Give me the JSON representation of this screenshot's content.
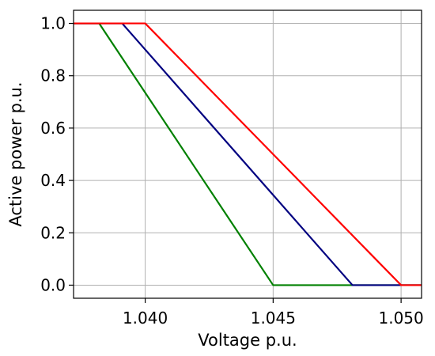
{
  "chart_data": {
    "type": "line",
    "title": "",
    "xlabel": "Voltage p.u.",
    "ylabel": "Active power p.u.",
    "xlim": [
      1.0372,
      1.0508
    ],
    "ylim": [
      -0.05,
      1.05
    ],
    "grid": true,
    "x_ticks": [
      1.04,
      1.045,
      1.05
    ],
    "x_tick_labels": [
      "1.040",
      "1.045",
      "1.050"
    ],
    "y_ticks": [
      0.0,
      0.2,
      0.4,
      0.6,
      0.8,
      1.0
    ],
    "y_tick_labels": [
      "0.0",
      "0.2",
      "0.4",
      "0.6",
      "0.8",
      "1.0"
    ],
    "series": [
      {
        "color": "#008000",
        "x": [
          1.0372,
          1.0382,
          1.045,
          1.0508
        ],
        "y": [
          1.0,
          1.0,
          0.0,
          0.0
        ]
      },
      {
        "color": "#000080",
        "x": [
          1.0372,
          1.0391,
          1.0481,
          1.0508
        ],
        "y": [
          1.0,
          1.0,
          0.0,
          0.0
        ]
      },
      {
        "color": "#ff0000",
        "x": [
          1.0372,
          1.04,
          1.05,
          1.0508
        ],
        "y": [
          1.0,
          1.0,
          0.0,
          0.0
        ]
      }
    ]
  }
}
